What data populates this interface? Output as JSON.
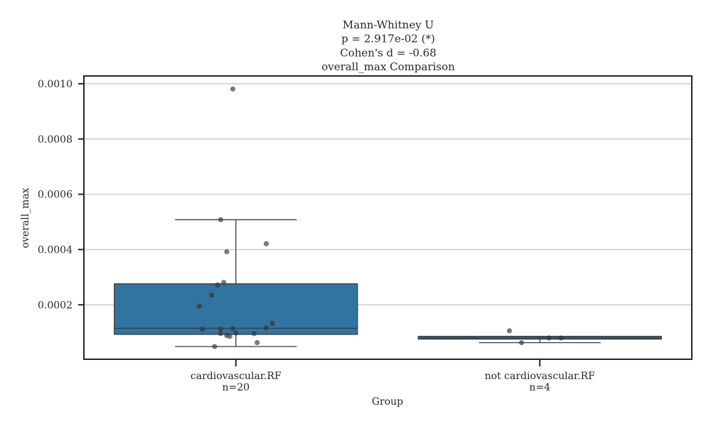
{
  "chart_data": {
    "type": "box",
    "title_lines": [
      "Mann-Whitney U",
      "p = 2.917e-02 (*)",
      "Cohen's d = -0.68",
      "overall_max Comparison"
    ],
    "xlabel": "Group",
    "ylabel": "overall_max",
    "ylim": [
      3e-06,
      0.001028
    ],
    "yticks": [
      0.0002,
      0.0004,
      0.0006,
      0.0008,
      0.001
    ],
    "ytick_labels": [
      "0.0002",
      "0.0004",
      "0.0006",
      "0.0008",
      "0.0010"
    ],
    "grid": true,
    "box_color": "#3274a1",
    "point_color": "#333333",
    "groups": [
      {
        "category": "cardiovascular.RF",
        "n_label": "n=20",
        "whisker_low": 4.9e-05,
        "q1": 9.3e-05,
        "median": 0.000115,
        "q3": 0.000276,
        "whisker_high": 0.000508,
        "points": [
          {
            "offset": -0.01,
            "y": 0.000981
          },
          {
            "offset": -0.05,
            "y": 0.000508
          },
          {
            "offset": 0.1,
            "y": 0.000421
          },
          {
            "offset": -0.03,
            "y": 0.000392
          },
          {
            "offset": -0.04,
            "y": 0.000281
          },
          {
            "offset": -0.06,
            "y": 0.000272
          },
          {
            "offset": -0.08,
            "y": 0.000235
          },
          {
            "offset": -0.12,
            "y": 0.000195
          },
          {
            "offset": 0.12,
            "y": 0.000133
          },
          {
            "offset": -0.11,
            "y": 0.000112
          },
          {
            "offset": -0.05,
            "y": 0.000112
          },
          {
            "offset": -0.01,
            "y": 0.000114
          },
          {
            "offset": 0.1,
            "y": 0.000117
          },
          {
            "offset": -0.05,
            "y": 9.6e-05
          },
          {
            "offset": 0.06,
            "y": 9.6e-05
          },
          {
            "offset": 0.0,
            "y": 9.8e-05
          },
          {
            "offset": -0.03,
            "y": 8.9e-05
          },
          {
            "offset": -0.02,
            "y": 8.6e-05
          },
          {
            "offset": 0.07,
            "y": 6.3e-05
          },
          {
            "offset": -0.07,
            "y": 4.9e-05
          }
        ]
      },
      {
        "category": "not cardiovascular.RF",
        "n_label": "n=4",
        "whisker_low": 6.3e-05,
        "q1": 7.6e-05,
        "median": 8e-05,
        "q3": 8.6e-05,
        "whisker_high": 8.6e-05,
        "points": [
          {
            "offset": -0.1,
            "y": 0.000106
          },
          {
            "offset": 0.03,
            "y": 8e-05
          },
          {
            "offset": 0.07,
            "y": 8e-05
          },
          {
            "offset": -0.06,
            "y": 6.3e-05
          }
        ]
      }
    ]
  }
}
